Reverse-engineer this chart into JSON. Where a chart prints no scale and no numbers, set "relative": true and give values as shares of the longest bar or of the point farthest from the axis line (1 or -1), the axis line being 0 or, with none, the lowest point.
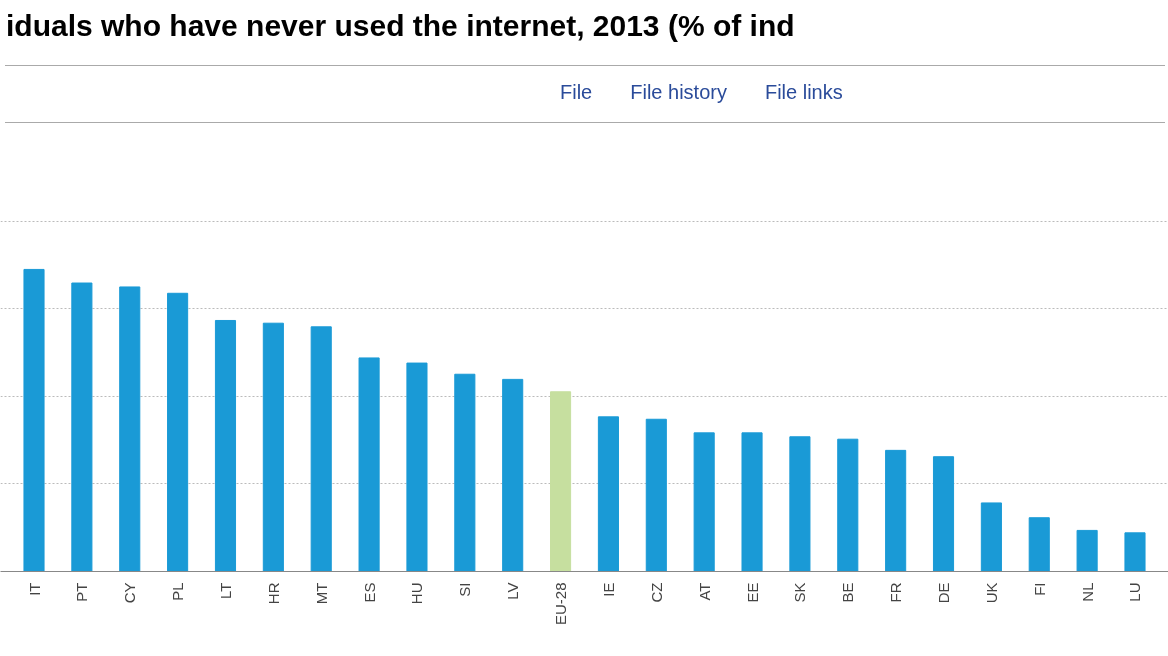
{
  "chart_data": {
    "type": "bar",
    "title": "iduals who have never used the internet, 2013 (% of ind",
    "annotations": [
      "File",
      "File history",
      "File links"
    ],
    "relative": true,
    "grid": "y",
    "categories": [
      "IT",
      "PT",
      "CY",
      "PL",
      "LT",
      "HR",
      "MT",
      "ES",
      "HU",
      "SI",
      "LV",
      "EU-28",
      "IE",
      "CZ",
      "AT",
      "EE",
      "SK",
      "BE",
      "FR",
      "DE",
      "UK",
      "FI",
      "NL",
      "LU"
    ],
    "values": [
      1,
      0.955,
      0.942,
      0.921,
      0.831,
      0.822,
      0.81,
      0.707,
      0.69,
      0.653,
      0.636,
      0.595,
      0.512,
      0.504,
      0.459,
      0.459,
      0.446,
      0.438,
      0.401,
      0.38,
      0.227,
      0.178,
      0.136,
      0.128
    ],
    "colors": [
      "#1a9ad6",
      "#1a9ad6",
      "#1a9ad6",
      "#1a9ad6",
      "#1a9ad6",
      "#1a9ad6",
      "#1a9ad6",
      "#1a9ad6",
      "#1a9ad6",
      "#1a9ad6",
      "#1a9ad6",
      "#c6df9f",
      "#1a9ad6",
      "#1a9ad6",
      "#1a9ad6",
      "#1a9ad6",
      "#1a9ad6",
      "#1a9ad6",
      "#1a9ad6",
      "#1a9ad6",
      "#1a9ad6",
      "#1a9ad6",
      "#1a9ad6",
      "#1a9ad6"
    ]
  }
}
